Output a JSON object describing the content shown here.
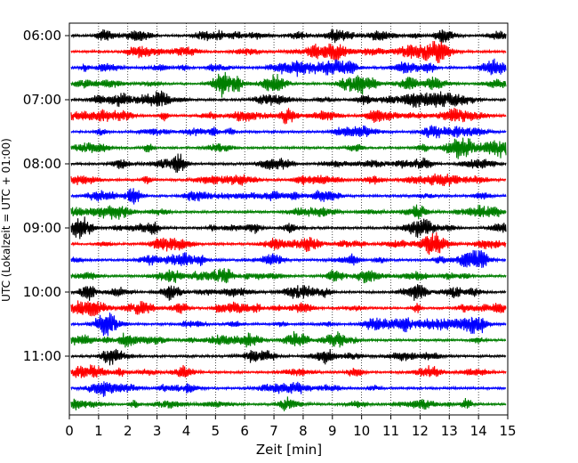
{
  "chart_data": {
    "type": "line",
    "subtype": "helicorder",
    "xlabel": "Zeit  [min]",
    "ylabel": "UTC (Lokalzeit = UTC + 01:00)",
    "xlim": [
      0,
      15
    ],
    "x_ticks": [
      "0",
      "1",
      "2",
      "3",
      "4",
      "5",
      "6",
      "7",
      "8",
      "9",
      "10",
      "11",
      "12",
      "13",
      "14",
      "15"
    ],
    "grid": "vertical dotted at each minute",
    "y_tick_labels": [
      "06:00",
      "07:00",
      "08:00",
      "09:00",
      "10:00",
      "11:00"
    ],
    "trace_minutes": 15,
    "trace_colors": [
      "#000000",
      "#ff0000",
      "#0000ff",
      "#007f00"
    ],
    "traces": [
      {
        "start": "06:00",
        "color": "#000000"
      },
      {
        "start": "06:15",
        "color": "#ff0000"
      },
      {
        "start": "06:30",
        "color": "#0000ff"
      },
      {
        "start": "06:45",
        "color": "#007f00"
      },
      {
        "start": "07:00",
        "color": "#000000"
      },
      {
        "start": "07:15",
        "color": "#ff0000"
      },
      {
        "start": "07:30",
        "color": "#0000ff"
      },
      {
        "start": "07:45",
        "color": "#007f00"
      },
      {
        "start": "08:00",
        "color": "#000000"
      },
      {
        "start": "08:15",
        "color": "#ff0000"
      },
      {
        "start": "08:30",
        "color": "#0000ff"
      },
      {
        "start": "08:45",
        "color": "#007f00"
      },
      {
        "start": "09:00",
        "color": "#000000"
      },
      {
        "start": "09:15",
        "color": "#ff0000"
      },
      {
        "start": "09:30",
        "color": "#0000ff"
      },
      {
        "start": "09:45",
        "color": "#007f00"
      },
      {
        "start": "10:00",
        "color": "#000000"
      },
      {
        "start": "10:15",
        "color": "#ff0000"
      },
      {
        "start": "10:30",
        "color": "#0000ff"
      },
      {
        "start": "10:45",
        "color": "#007f00"
      },
      {
        "start": "11:00",
        "color": "#000000"
      },
      {
        "start": "11:15",
        "color": "#ff0000"
      },
      {
        "start": "11:30",
        "color": "#0000ff"
      },
      {
        "start": "11:45",
        "color": "#007f00"
      }
    ]
  }
}
